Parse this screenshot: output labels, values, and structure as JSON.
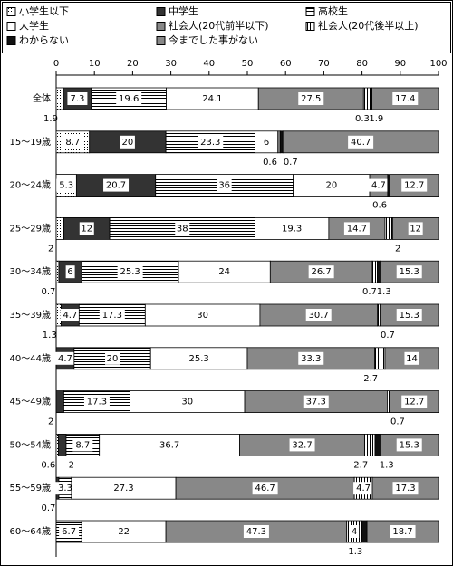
{
  "chart_data": {
    "type": "bar",
    "orientation": "horizontal",
    "stacked": true,
    "categories": [
      "全体",
      "15～19歳",
      "20～24歳",
      "25～29歳",
      "30～34歳",
      "35～39歳",
      "40～44歳",
      "45～49歳",
      "50～54歳",
      "55～59歳",
      "60～64歳"
    ],
    "series": [
      {
        "name": "小学生以下",
        "color": "#ffffff",
        "pattern": "dots",
        "values": [
          1.9,
          8.7,
          5.3,
          2.0,
          0.7,
          1.3,
          0,
          0,
          0.6,
          0,
          0
        ]
      },
      {
        "name": "中学生",
        "color": "#333333",
        "values": [
          7.3,
          20.0,
          20.7,
          12.0,
          6.0,
          4.7,
          4.7,
          2.0,
          2.0,
          0.7,
          0
        ]
      },
      {
        "name": "高校生",
        "color": "#ffffff",
        "pattern": "hlines",
        "values": [
          19.6,
          23.3,
          36.0,
          38.0,
          25.3,
          17.3,
          20.0,
          17.3,
          8.7,
          3.3,
          6.7
        ]
      },
      {
        "name": "大学生",
        "color": "#ffffff",
        "values": [
          24.1,
          6.0,
          20.0,
          19.3,
          24.0,
          30.0,
          25.3,
          30.0,
          36.7,
          27.3,
          22.0
        ]
      },
      {
        "name": "社会人(20代前半以下)",
        "color": "#888888",
        "values": [
          27.5,
          0.6,
          4.7,
          14.7,
          26.7,
          30.7,
          33.3,
          37.3,
          32.7,
          46.7,
          47.3
        ]
      },
      {
        "name": "社会人(20代後半以上)",
        "color": "#ffffff",
        "pattern": "vlines",
        "values": [
          1.9,
          0,
          0,
          2.0,
          1.3,
          0.7,
          2.7,
          0.7,
          2.7,
          4.7,
          4.0
        ]
      },
      {
        "name": "わからない",
        "color": "#111111",
        "values": [
          0.3,
          0.7,
          0.6,
          0,
          0.7,
          0,
          0,
          0,
          1.3,
          0,
          1.3
        ]
      },
      {
        "name": "今までした事がない",
        "color": "#888888",
        "values": [
          17.4,
          40.7,
          12.7,
          12.0,
          15.3,
          15.3,
          14.0,
          12.7,
          15.3,
          17.3,
          18.7
        ]
      }
    ],
    "xlim": [
      0,
      100
    ],
    "xticks": [
      0,
      10,
      20,
      30,
      40,
      50,
      60,
      70,
      80,
      90,
      100
    ],
    "grid": false
  }
}
